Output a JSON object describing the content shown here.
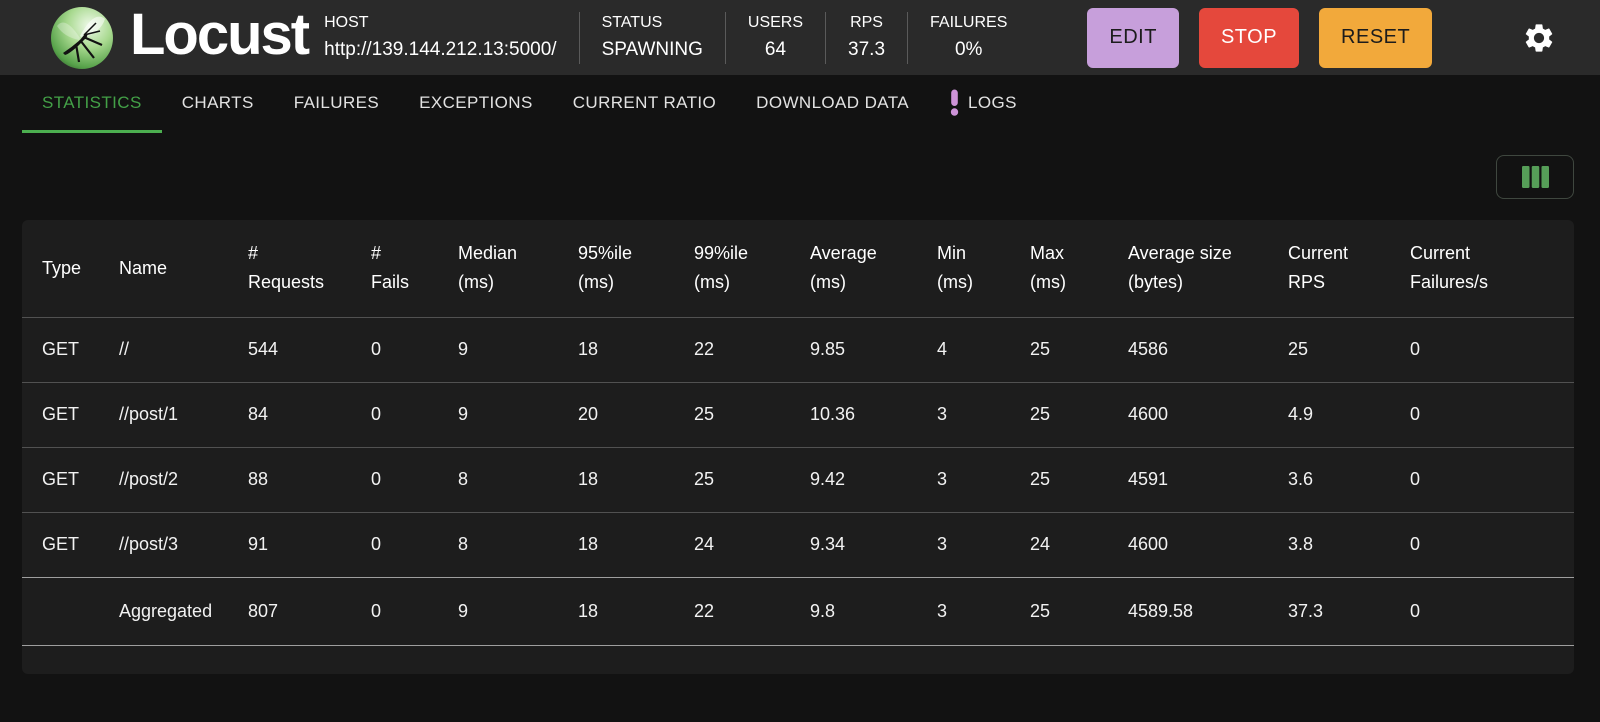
{
  "header": {
    "app_name": "Locust",
    "host": {
      "label": "HOST",
      "url": "http://139.144.212.13:5000/"
    },
    "stats": [
      {
        "label": "STATUS",
        "value": "SPAWNING"
      },
      {
        "label": "USERS",
        "value": "64"
      },
      {
        "label": "RPS",
        "value": "37.3"
      },
      {
        "label": "FAILURES",
        "value": "0%"
      }
    ],
    "buttons": {
      "edit": "EDIT",
      "stop": "STOP",
      "reset": "RESET"
    }
  },
  "colors": {
    "header_bg": "#2a2a2a",
    "page_bg": "#121212",
    "table_bg": "#1d1d1d",
    "accent_green": "#4CAF50",
    "active_tab_green": "#43A047",
    "edit_button_bg": "#C79FDB",
    "stop_button_bg": "#E5483C",
    "reset_button_bg": "#F2A93B",
    "logs_badge_pink": "#CE93D8"
  },
  "tabs": {
    "items": [
      {
        "label": "STATISTICS",
        "active": true
      },
      {
        "label": "CHARTS",
        "active": false
      },
      {
        "label": "FAILURES",
        "active": false
      },
      {
        "label": "EXCEPTIONS",
        "active": false
      },
      {
        "label": "CURRENT RATIO",
        "active": false
      },
      {
        "label": "DOWNLOAD DATA",
        "active": false
      },
      {
        "label": "LOGS",
        "active": false,
        "badge": "!"
      }
    ]
  },
  "table": {
    "columns": [
      "Type",
      "Name",
      "#\nRequests",
      "#\nFails",
      "Median\n(ms)",
      "95%ile\n(ms)",
      "99%ile\n(ms)",
      "Average\n(ms)",
      "Min\n(ms)",
      "Max\n(ms)",
      "Average size\n(bytes)",
      "Current\nRPS",
      "Current\nFailures/s"
    ],
    "rows": [
      [
        "GET",
        "//",
        "544",
        "0",
        "9",
        "18",
        "22",
        "9.85",
        "4",
        "25",
        "4586",
        "25",
        "0"
      ],
      [
        "GET",
        "//post/1",
        "84",
        "0",
        "9",
        "20",
        "25",
        "10.36",
        "3",
        "25",
        "4600",
        "4.9",
        "0"
      ],
      [
        "GET",
        "//post/2",
        "88",
        "0",
        "8",
        "18",
        "25",
        "9.42",
        "3",
        "25",
        "4591",
        "3.6",
        "0"
      ],
      [
        "GET",
        "//post/3",
        "91",
        "0",
        "8",
        "18",
        "24",
        "9.34",
        "3",
        "24",
        "4600",
        "3.8",
        "0"
      ]
    ],
    "total_row": [
      "",
      "Aggregated",
      "807",
      "0",
      "9",
      "18",
      "22",
      "9.8",
      "3",
      "25",
      "4589.58",
      "37.3",
      "0"
    ]
  }
}
